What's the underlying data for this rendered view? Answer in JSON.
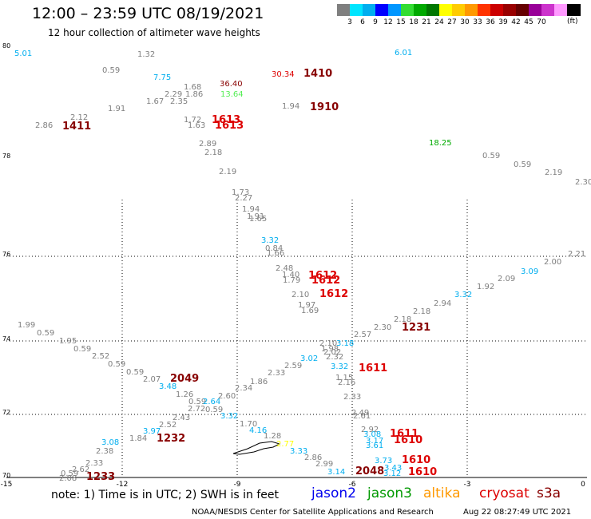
{
  "title": "12:00 – 23:59 UTC 08/19/2021",
  "subtitle": "12 hour collection of altimeter wave heights",
  "legend": {
    "unit": "(ft)",
    "colors": [
      "#7f7f7f",
      "#00e5ff",
      "#00aeef",
      "#0000ff",
      "#0096ff",
      "#33dd33",
      "#00aa00",
      "#007700",
      "#ffff00",
      "#ffcc00",
      "#ff9900",
      "#ff3300",
      "#cc0000",
      "#990000",
      "#660000",
      "#990099",
      "#cc33cc",
      "#ff99ff",
      "#000000"
    ],
    "labels": [
      "3",
      "6",
      "9",
      "12",
      "15",
      "18",
      "21",
      "24",
      "27",
      "30",
      "33",
      "36",
      "39",
      "42",
      "45",
      "70"
    ]
  },
  "axes": {
    "lat_labels": [
      "80",
      "78",
      "76",
      "74",
      "72",
      "70"
    ],
    "lon_labels": [
      "-15",
      "-12",
      "-9",
      "-6",
      "-3",
      "0"
    ]
  },
  "values": [
    {
      "t": "5.01",
      "c": "#00aeef"
    },
    {
      "t": "1.32",
      "c": "#7f7f7f"
    },
    {
      "t": "0.59",
      "c": "#7f7f7f"
    },
    {
      "t": "7.75",
      "c": "#00aeef"
    },
    {
      "t": "1.68",
      "c": "#7f7f7f"
    },
    {
      "t": "2.29",
      "c": "#7f7f7f"
    },
    {
      "t": "1.86",
      "c": "#7f7f7f"
    },
    {
      "t": "1.67",
      "c": "#7f7f7f"
    },
    {
      "t": "2.35",
      "c": "#7f7f7f"
    },
    {
      "t": "1.91",
      "c": "#7f7f7f"
    },
    {
      "t": "2.12",
      "c": "#7f7f7f"
    },
    {
      "t": "2.86",
      "c": "#7f7f7f"
    },
    {
      "t": "1411",
      "c": "#880000",
      "b": 1
    },
    {
      "t": "1.72",
      "c": "#7f7f7f"
    },
    {
      "t": "1.63",
      "c": "#7f7f7f"
    },
    {
      "t": "1613",
      "c": "#dd0000",
      "b": 1
    },
    {
      "t": "1613",
      "c": "#dd0000",
      "b": 1
    },
    {
      "t": "36.40",
      "c": "#880000"
    },
    {
      "t": "13.64",
      "c": "#55ee55"
    },
    {
      "t": "30.34",
      "c": "#dd0000"
    },
    {
      "t": "1410",
      "c": "#880000",
      "b": 1
    },
    {
      "t": "1.94",
      "c": "#7f7f7f"
    },
    {
      "t": "1910",
      "c": "#880000",
      "b": 1
    },
    {
      "t": "6.01",
      "c": "#00aeef"
    },
    {
      "t": "18.25",
      "c": "#00aa00"
    },
    {
      "t": "0.59",
      "c": "#7f7f7f"
    },
    {
      "t": "0.59",
      "c": "#7f7f7f"
    },
    {
      "t": "2.19",
      "c": "#7f7f7f"
    },
    {
      "t": "2.30",
      "c": "#7f7f7f"
    },
    {
      "t": "2.89",
      "c": "#7f7f7f"
    },
    {
      "t": "2.18",
      "c": "#7f7f7f"
    },
    {
      "t": "2.19",
      "c": "#7f7f7f"
    },
    {
      "t": "1.73",
      "c": "#7f7f7f"
    },
    {
      "t": "2.27",
      "c": "#7f7f7f"
    },
    {
      "t": "1.94",
      "c": "#7f7f7f"
    },
    {
      "t": "1.91",
      "c": "#7f7f7f"
    },
    {
      "t": "1.65",
      "c": "#7f7f7f"
    },
    {
      "t": "3.32",
      "c": "#00aeef"
    },
    {
      "t": "0.84",
      "c": "#7f7f7f"
    },
    {
      "t": "1.66",
      "c": "#7f7f7f"
    },
    {
      "t": "2.21",
      "c": "#7f7f7f"
    },
    {
      "t": "2.00",
      "c": "#7f7f7f"
    },
    {
      "t": "3.09",
      "c": "#00aeef"
    },
    {
      "t": "2.48",
      "c": "#7f7f7f"
    },
    {
      "t": "1.40",
      "c": "#7f7f7f"
    },
    {
      "t": "1.79",
      "c": "#7f7f7f"
    },
    {
      "t": "1612",
      "c": "#dd0000",
      "b": 1
    },
    {
      "t": "1612",
      "c": "#dd0000",
      "b": 1
    },
    {
      "t": "2.09",
      "c": "#7f7f7f"
    },
    {
      "t": "1.92",
      "c": "#7f7f7f"
    },
    {
      "t": "2.10",
      "c": "#7f7f7f"
    },
    {
      "t": "1612",
      "c": "#dd0000",
      "b": 1
    },
    {
      "t": "3.32",
      "c": "#00aeef"
    },
    {
      "t": "2.94",
      "c": "#7f7f7f"
    },
    {
      "t": "1.97",
      "c": "#7f7f7f"
    },
    {
      "t": "1.69",
      "c": "#7f7f7f"
    },
    {
      "t": "2.18",
      "c": "#7f7f7f"
    },
    {
      "t": "2.18",
      "c": "#7f7f7f"
    },
    {
      "t": "1.99",
      "c": "#7f7f7f"
    },
    {
      "t": "0.59",
      "c": "#7f7f7f"
    },
    {
      "t": "2.30",
      "c": "#7f7f7f"
    },
    {
      "t": "1231",
      "c": "#880000",
      "b": 1
    },
    {
      "t": "1.95",
      "c": "#7f7f7f"
    },
    {
      "t": "2.57",
      "c": "#7f7f7f"
    },
    {
      "t": "0.59",
      "c": "#7f7f7f"
    },
    {
      "t": "2.10",
      "c": "#7f7f7f"
    },
    {
      "t": "3.18",
      "c": "#00aeef"
    },
    {
      "t": "2.52",
      "c": "#7f7f7f"
    },
    {
      "t": "1.98",
      "c": "#7f7f7f"
    },
    {
      "t": "2.02",
      "c": "#7f7f7f"
    },
    {
      "t": "3.02",
      "c": "#00aeef"
    },
    {
      "t": "2.32",
      "c": "#7f7f7f"
    },
    {
      "t": "0.59",
      "c": "#7f7f7f"
    },
    {
      "t": "2.59",
      "c": "#7f7f7f"
    },
    {
      "t": "3.32",
      "c": "#00aeef"
    },
    {
      "t": "1611",
      "c": "#dd0000",
      "b": 1
    },
    {
      "t": "0.59",
      "c": "#7f7f7f"
    },
    {
      "t": "2.33",
      "c": "#7f7f7f"
    },
    {
      "t": "2.07",
      "c": "#7f7f7f"
    },
    {
      "t": "2049",
      "c": "#880000",
      "b": 1
    },
    {
      "t": "1.86",
      "c": "#7f7f7f"
    },
    {
      "t": "1.15",
      "c": "#7f7f7f"
    },
    {
      "t": "3.48",
      "c": "#00aeef"
    },
    {
      "t": "2.34",
      "c": "#7f7f7f"
    },
    {
      "t": "2.16",
      "c": "#7f7f7f"
    },
    {
      "t": "1.26",
      "c": "#7f7f7f"
    },
    {
      "t": "2.60",
      "c": "#7f7f7f"
    },
    {
      "t": "2.33",
      "c": "#7f7f7f"
    },
    {
      "t": "0.59",
      "c": "#7f7f7f"
    },
    {
      "t": "2.64",
      "c": "#00aeef"
    },
    {
      "t": "2.72",
      "c": "#7f7f7f"
    },
    {
      "t": "0.59",
      "c": "#7f7f7f"
    },
    {
      "t": "3.32",
      "c": "#00aeef"
    },
    {
      "t": "2.49",
      "c": "#7f7f7f"
    },
    {
      "t": "2.43",
      "c": "#7f7f7f"
    },
    {
      "t": "2.61",
      "c": "#7f7f7f"
    },
    {
      "t": "1.70",
      "c": "#7f7f7f"
    },
    {
      "t": "2.52",
      "c": "#7f7f7f"
    },
    {
      "t": "3.97",
      "c": "#00aeef"
    },
    {
      "t": "4.16",
      "c": "#00aeef"
    },
    {
      "t": "2.92",
      "c": "#7f7f7f"
    },
    {
      "t": "3.08",
      "c": "#00aeef"
    },
    {
      "t": "1611",
      "c": "#dd0000",
      "b": 1
    },
    {
      "t": "1.84",
      "c": "#7f7f7f"
    },
    {
      "t": "1232",
      "c": "#880000",
      "b": 1
    },
    {
      "t": "1.28",
      "c": "#7f7f7f"
    },
    {
      "t": "3.17",
      "c": "#00aeef"
    },
    {
      "t": "1610",
      "c": "#dd0000",
      "b": 1
    },
    {
      "t": "3.08",
      "c": "#00aeef"
    },
    {
      "t": "2.77",
      "c": "#ffff00"
    },
    {
      "t": "3.61",
      "c": "#00aeef"
    },
    {
      "t": "2.38",
      "c": "#7f7f7f"
    },
    {
      "t": "3.33",
      "c": "#00aeef"
    },
    {
      "t": "2.33",
      "c": "#7f7f7f"
    },
    {
      "t": "2.86",
      "c": "#7f7f7f"
    },
    {
      "t": "3.73",
      "c": "#00aeef"
    },
    {
      "t": "1610",
      "c": "#dd0000",
      "b": 1
    },
    {
      "t": "2.62",
      "c": "#7f7f7f"
    },
    {
      "t": "2.99",
      "c": "#7f7f7f"
    },
    {
      "t": "3.43",
      "c": "#00aeef"
    },
    {
      "t": "0.59",
      "c": "#7f7f7f"
    },
    {
      "t": "3.14",
      "c": "#00aeef"
    },
    {
      "t": "2048",
      "c": "#880000",
      "b": 1
    },
    {
      "t": "3.12",
      "c": "#00aeef"
    },
    {
      "t": "1610",
      "c": "#dd0000",
      "b": 1
    },
    {
      "t": "2.08",
      "c": "#7f7f7f"
    },
    {
      "t": "1233",
      "c": "#880000",
      "b": 1
    }
  ],
  "note": "note:  1) Time is in UTC;  2) SWH is in feet",
  "satellites": [
    {
      "name": "jason2",
      "color": "#0000ee"
    },
    {
      "name": "jason3",
      "color": "#009900"
    },
    {
      "name": "altika",
      "color": "#ff9900"
    },
    {
      "name": "cryosat",
      "color": "#dd0000"
    },
    {
      "name": "s3a",
      "color": "#880000"
    }
  ],
  "credit": "NOAA/NESDIS Center for Satellite Applications and Research",
  "timestamp": "Aug 22 08:27:49 UTC 2021"
}
